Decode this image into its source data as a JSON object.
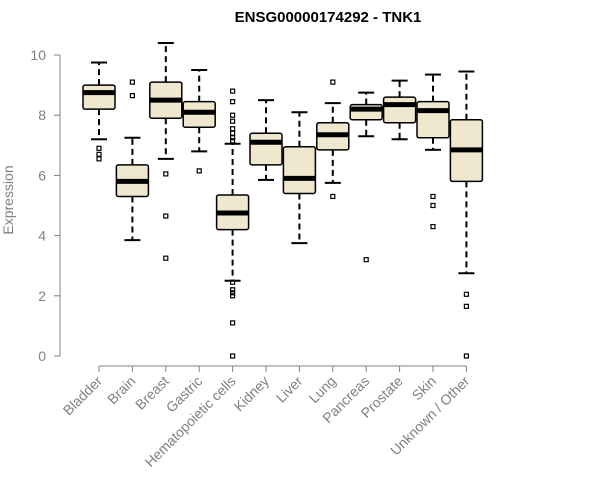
{
  "chart_data": {
    "type": "box",
    "title": "ENSG00000174292 - TNK1",
    "xlabel": "",
    "ylabel": "Expression",
    "ylim": [
      0,
      10
    ],
    "yticks": [
      0,
      2,
      4,
      6,
      8,
      10
    ],
    "grid": false,
    "colors": {
      "box_fill": "#efe8cf",
      "stroke": "#000000",
      "axis": "#808080",
      "title": "#000000"
    },
    "categories": [
      "Bladder",
      "Brain",
      "Breast",
      "Gastric",
      "Hematopoietic cells",
      "Kidney",
      "Liver",
      "Lung",
      "Pancreas",
      "Prostate",
      "Skin",
      "Unknown / Other"
    ],
    "boxes": [
      {
        "category": "Bladder",
        "whisker_low": 7.2,
        "q1": 8.2,
        "median": 8.75,
        "q3": 9.0,
        "whisker_high": 9.75,
        "outliers": [
          6.9,
          6.7,
          6.55
        ]
      },
      {
        "category": "Brain",
        "whisker_low": 3.85,
        "q1": 5.3,
        "median": 5.8,
        "q3": 6.35,
        "whisker_high": 7.25,
        "outliers": [
          9.1,
          8.65
        ]
      },
      {
        "category": "Breast",
        "whisker_low": 6.55,
        "q1": 7.9,
        "median": 8.5,
        "q3": 9.1,
        "whisker_high": 10.4,
        "outliers": [
          6.05,
          4.65,
          3.25
        ]
      },
      {
        "category": "Gastric",
        "whisker_low": 6.8,
        "q1": 7.6,
        "median": 8.1,
        "q3": 8.45,
        "whisker_high": 9.5,
        "outliers": [
          6.15
        ]
      },
      {
        "category": "Hematopoietic cells",
        "whisker_low": 2.5,
        "q1": 4.2,
        "median": 4.75,
        "q3": 5.35,
        "whisker_high": 7.05,
        "outliers": [
          8.8,
          8.45,
          8.0,
          7.8,
          7.55,
          7.4,
          7.25,
          7.15,
          2.45,
          2.2,
          2.1,
          2.0,
          1.1,
          0.0
        ]
      },
      {
        "category": "Kidney",
        "whisker_low": 5.85,
        "q1": 6.35,
        "median": 7.1,
        "q3": 7.4,
        "whisker_high": 8.5,
        "outliers": []
      },
      {
        "category": "Liver",
        "whisker_low": 3.75,
        "q1": 5.4,
        "median": 5.9,
        "q3": 6.95,
        "whisker_high": 8.1,
        "outliers": []
      },
      {
        "category": "Lung",
        "whisker_low": 5.75,
        "q1": 6.85,
        "median": 7.35,
        "q3": 7.75,
        "whisker_high": 8.4,
        "outliers": [
          9.1,
          5.3
        ]
      },
      {
        "category": "Pancreas",
        "whisker_low": 7.3,
        "q1": 7.85,
        "median": 8.2,
        "q3": 8.35,
        "whisker_high": 8.75,
        "outliers": [
          3.2
        ]
      },
      {
        "category": "Prostate",
        "whisker_low": 7.2,
        "q1": 7.75,
        "median": 8.35,
        "q3": 8.6,
        "whisker_high": 9.15,
        "outliers": []
      },
      {
        "category": "Skin",
        "whisker_low": 6.85,
        "q1": 7.25,
        "median": 8.15,
        "q3": 8.45,
        "whisker_high": 9.35,
        "outliers": [
          5.3,
          5.0,
          4.3
        ]
      },
      {
        "category": "Unknown / Other",
        "whisker_low": 2.75,
        "q1": 5.8,
        "median": 6.85,
        "q3": 7.85,
        "whisker_high": 9.45,
        "outliers": [
          2.05,
          1.65,
          0.0
        ]
      }
    ]
  }
}
